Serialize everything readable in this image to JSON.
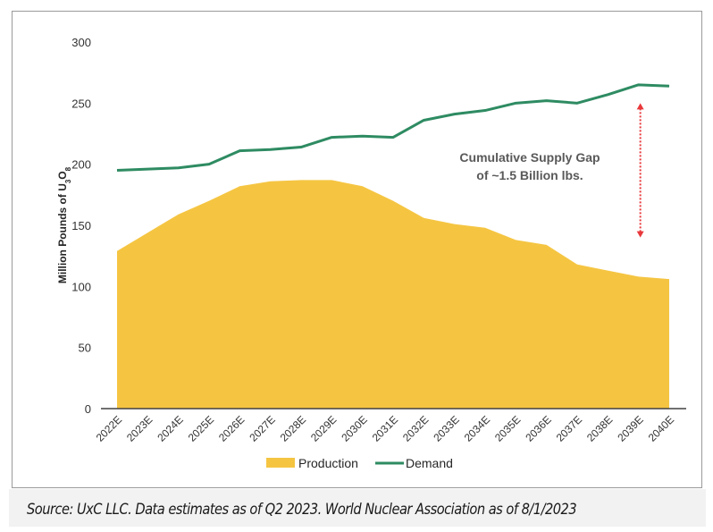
{
  "chart_data": {
    "type": "area",
    "title": "",
    "xlabel": "",
    "ylabel": "Million Pounds of U3O8",
    "ylabel_main": "Million Pounds of U",
    "ylabel_sub1": "3",
    "ylabel_mid": "O",
    "ylabel_sub2": "8",
    "ylim": [
      0,
      300
    ],
    "yticks": [
      0,
      50,
      100,
      150,
      200,
      250,
      300
    ],
    "grid": false,
    "categories": [
      "2022E",
      "2023E",
      "2024E",
      "2025E",
      "2026E",
      "2027E",
      "2028E",
      "2029E",
      "2030E",
      "2031E",
      "2032E",
      "2033E",
      "2034E",
      "2035E",
      "2036E",
      "2037E",
      "2038E",
      "2039E",
      "2040E"
    ],
    "series": [
      {
        "name": "Production",
        "kind": "area",
        "color": "#F5C542",
        "values": [
          129,
          144,
          159,
          170,
          182,
          186,
          187,
          187,
          182,
          170,
          156,
          151,
          148,
          138,
          134,
          118,
          113,
          108,
          106
        ]
      },
      {
        "name": "Demand",
        "kind": "line",
        "color": "#2E8B62",
        "values": [
          195,
          196,
          197,
          200,
          211,
          212,
          214,
          222,
          223,
          222,
          236,
          241,
          244,
          250,
          252,
          250,
          257,
          265,
          264
        ]
      }
    ],
    "annotation": {
      "line1": "Cumulative Supply Gap",
      "line2": "of ~1.5 Billion lbs.",
      "arrow_color": "#E8383B",
      "arrow_category": "2039E",
      "arrow_from": 250,
      "arrow_to": 140
    },
    "legend": {
      "placement": "bottom-center",
      "items": [
        "Production",
        "Demand"
      ]
    }
  },
  "source_note": "Source: UxC LLC. Data estimates as of Q2 2023. World Nuclear Association as of 8/1/2023"
}
